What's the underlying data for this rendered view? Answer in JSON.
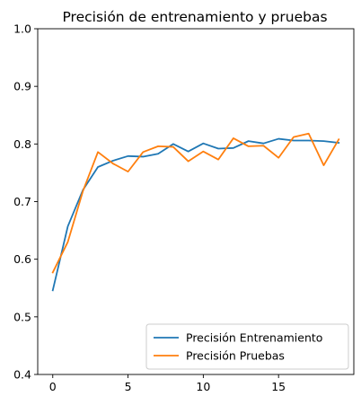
{
  "chart_data": {
    "type": "line",
    "title": "Precisión de entrenamiento y pruebas",
    "xlabel": "",
    "ylabel": "",
    "xlim": [
      -1,
      20
    ],
    "ylim": [
      0.4,
      1.0
    ],
    "xticks": [
      0,
      5,
      10,
      15
    ],
    "yticks": [
      0.4,
      0.5,
      0.6,
      0.7,
      0.8,
      0.9,
      1.0
    ],
    "ytick_labels": [
      "0.4",
      "0.5",
      "0.6",
      "0.7",
      "0.8",
      "0.9",
      "1.0"
    ],
    "grid": false,
    "legend_position": "lower-right",
    "x": [
      0,
      1,
      2,
      3,
      4,
      5,
      6,
      7,
      8,
      9,
      10,
      11,
      12,
      13,
      14,
      15,
      16,
      17,
      18,
      19
    ],
    "series": [
      {
        "name": "Precisión Entrenamiento",
        "color": "#1f77b4",
        "values": [
          0.546,
          0.657,
          0.72,
          0.76,
          0.771,
          0.779,
          0.778,
          0.783,
          0.8,
          0.787,
          0.801,
          0.792,
          0.793,
          0.805,
          0.801,
          0.809,
          0.806,
          0.806,
          0.805,
          0.802
        ]
      },
      {
        "name": "Precisión Pruebas",
        "color": "#ff7f0e",
        "values": [
          0.577,
          0.63,
          0.718,
          0.786,
          0.766,
          0.752,
          0.786,
          0.796,
          0.795,
          0.77,
          0.787,
          0.773,
          0.81,
          0.796,
          0.797,
          0.776,
          0.812,
          0.818,
          0.763,
          0.808
        ]
      }
    ]
  }
}
